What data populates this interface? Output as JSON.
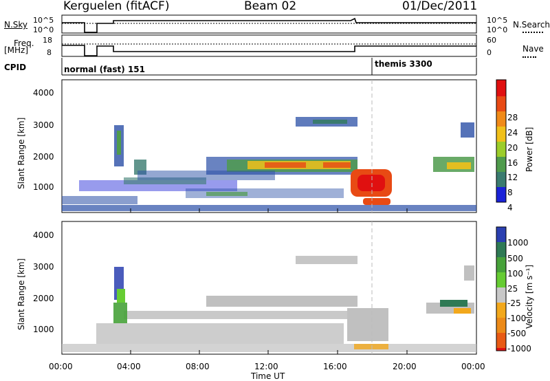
{
  "header": {
    "station": "Kerguelen (fitACF)",
    "beam": "Beam 02",
    "date": "01/Dec/2011"
  },
  "left_labels": {
    "nsky": "N.Sky",
    "freq_line1": "Freq.",
    "freq_line2": "[MHz]",
    "cpid": "CPID"
  },
  "right_labels": {
    "nsearch": "N.Search",
    "nave": "Nave"
  },
  "cpid_blocks": [
    {
      "label": "normal (fast) 151"
    },
    {
      "label": "themis 3300"
    }
  ],
  "colors": {
    "power_scale": [
      "#1a22d8",
      "#2a4fa6",
      "#3a7b6f",
      "#4f9b4c",
      "#9ccd2a",
      "#f0c01a",
      "#f08a18",
      "#e84a14",
      "#e01010"
    ],
    "velocity_scale": [
      "#2a3fb0",
      "#2f7a55",
      "#47a23a",
      "#66cc33",
      "#c8c8c8",
      "#f2a81c",
      "#ec8a18",
      "#e85a14",
      "#e01010"
    ],
    "ground_scatter": "#c0c0c0"
  },
  "chart_data": [
    {
      "type": "line",
      "name": "nsky-nsearch",
      "ylabels": [
        "10^5",
        "10^0"
      ],
      "right_ylabels": [
        "10^5",
        "10^0"
      ],
      "gaps_hours": [
        [
          1.3,
          1.9
        ]
      ]
    },
    {
      "type": "line",
      "name": "freq-nave",
      "yticks": [
        "18",
        "8"
      ],
      "right_yticks": [
        "60",
        "0"
      ],
      "freq_mhz": [
        {
          "x": 0.0,
          "y": 12.5
        },
        {
          "x": 3.0,
          "y": 11.0
        },
        {
          "x": 17.0,
          "y": 13.0
        },
        {
          "x": 24.0,
          "y": 13.0
        }
      ]
    },
    {
      "type": "heatmap",
      "name": "power",
      "ylabel": "Slant Range [km]",
      "yticks": [
        "4000",
        "3000",
        "2000",
        "1000"
      ],
      "ylim": [
        180,
        4500
      ],
      "colorbar_label": "Power [dB]",
      "colorbar_ticks": [
        "28",
        "24",
        "20",
        "16",
        "12",
        "8",
        "4"
      ],
      "zlim": [
        0,
        30
      ]
    },
    {
      "type": "heatmap",
      "name": "velocity",
      "ylabel": "Slant Range [km]",
      "yticks": [
        "4000",
        "3000",
        "2000",
        "1000"
      ],
      "ylim": [
        180,
        4500
      ],
      "colorbar_label": "Velocity [m s⁻¹]",
      "colorbar_ticks": [
        "1000",
        "500",
        "100",
        "25",
        "-25",
        "-100",
        "-500",
        "-1000"
      ]
    }
  ],
  "time_axis": {
    "ticks": [
      "00:00",
      "04:00",
      "08:00",
      "12:00",
      "16:00",
      "20:00",
      "00:00"
    ],
    "label": "Time UT",
    "xlim_hours": [
      0,
      24
    ]
  }
}
